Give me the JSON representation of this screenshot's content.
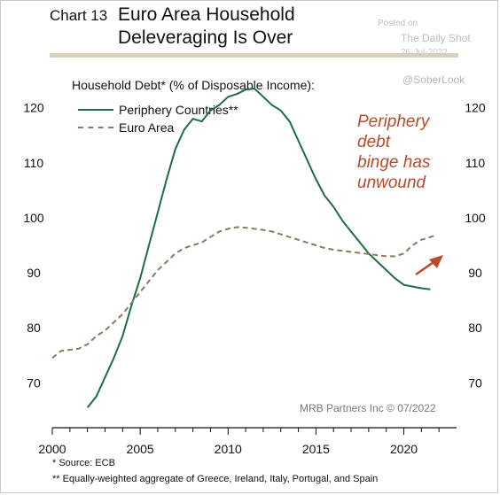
{
  "header": {
    "chart_label": "Chart 13",
    "title_line1": "Euro Area Household",
    "title_line2": "Deleveraging Is Over"
  },
  "source": {
    "posted": "Posted on",
    "site": "The Daily Shot",
    "date": "26-Jul-2022",
    "handle": "@SoberLook"
  },
  "annotation": {
    "line1": "Periphery",
    "line2": "debt",
    "line3": "binge has",
    "line4": "unwound"
  },
  "credit": "MRB Partners Inc © 07/2022",
  "footnotes": {
    "note1": "*  Source: ECB",
    "note2": "** Equally-weighted aggregate of Greece, Ireland, Italy, Portugal, and Spain"
  },
  "colors": {
    "periphery": "#1f6b47",
    "euro_area": "#8a7b63",
    "arrow": "#b84a2a",
    "header_rule": "#d9d1be"
  },
  "chart_data": {
    "type": "line",
    "ylabel": "Household Debt* (% of Disposable Income):",
    "xlim": [
      2000,
      2023
    ],
    "ylim": [
      62,
      128
    ],
    "x_ticks": [
      2000,
      2005,
      2010,
      2015,
      2020
    ],
    "y_ticks": [
      70,
      80,
      90,
      100,
      110,
      120
    ],
    "grid": false,
    "legend": "top-left",
    "series": [
      {
        "name": "Periphery Countries**",
        "style": "solid",
        "x": [
          2002.0,
          2002.5,
          2003.0,
          2003.5,
          2004.0,
          2004.5,
          2005.0,
          2005.5,
          2006.0,
          2006.5,
          2007.0,
          2007.5,
          2008.0,
          2008.5,
          2009.0,
          2009.5,
          2010.0,
          2010.5,
          2011.0,
          2011.5,
          2012.0,
          2012.5,
          2013.0,
          2013.5,
          2014.0,
          2014.5,
          2015.0,
          2015.5,
          2016.0,
          2016.5,
          2017.0,
          2017.5,
          2018.0,
          2018.5,
          2019.0,
          2019.5,
          2020.0,
          2020.5,
          2021.0,
          2021.5
        ],
        "values": [
          65.5,
          67.5,
          71.0,
          74.5,
          78.5,
          84.0,
          89.0,
          95.0,
          101.0,
          107.0,
          112.5,
          116.0,
          118.0,
          117.5,
          119.5,
          120.5,
          122.0,
          122.5,
          123.3,
          123.5,
          122.0,
          120.5,
          119.5,
          117.5,
          114.0,
          110.5,
          107.0,
          104.0,
          102.0,
          99.5,
          97.5,
          95.5,
          93.5,
          92.0,
          90.5,
          89.0,
          87.8,
          87.5,
          87.2,
          87.0
        ]
      },
      {
        "name": "Euro Area",
        "style": "dashed",
        "x": [
          2000.0,
          2000.5,
          2001.0,
          2001.5,
          2002.0,
          2002.5,
          2003.0,
          2003.5,
          2004.0,
          2004.5,
          2005.0,
          2005.5,
          2006.0,
          2006.5,
          2007.0,
          2007.5,
          2008.0,
          2008.5,
          2009.0,
          2009.5,
          2010.0,
          2010.5,
          2011.0,
          2011.5,
          2012.0,
          2012.5,
          2013.0,
          2013.5,
          2014.0,
          2014.5,
          2015.0,
          2015.5,
          2016.0,
          2016.5,
          2017.0,
          2017.5,
          2018.0,
          2018.5,
          2019.0,
          2019.5,
          2020.0,
          2020.5,
          2021.0,
          2021.5,
          2021.8
        ],
        "values": [
          74.5,
          75.8,
          76.0,
          76.2,
          77.0,
          78.5,
          79.5,
          81.0,
          82.5,
          84.5,
          86.5,
          88.5,
          90.5,
          92.0,
          93.5,
          94.5,
          95.0,
          95.5,
          96.5,
          97.5,
          98.0,
          98.3,
          98.2,
          98.0,
          97.8,
          97.5,
          97.0,
          96.5,
          96.0,
          95.5,
          95.0,
          94.5,
          94.2,
          94.0,
          93.8,
          93.6,
          93.4,
          93.2,
          93.0,
          93.0,
          93.5,
          95.0,
          96.0,
          96.5,
          96.8
        ]
      }
    ]
  }
}
